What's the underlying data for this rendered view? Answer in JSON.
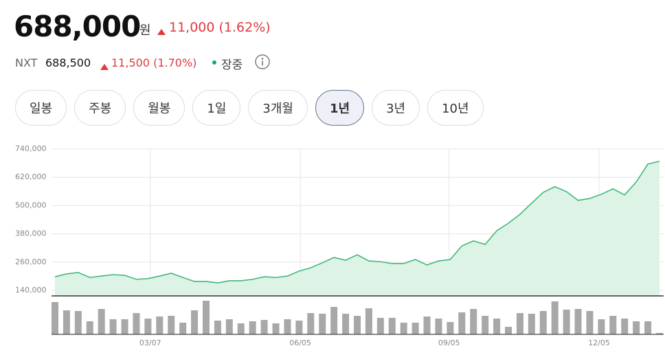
{
  "quote": {
    "price": "688,000",
    "currency": "원",
    "change": "11,000 (1.62%)"
  },
  "nxt": {
    "label": "NXT",
    "price": "688,500",
    "change": "11,500 (1.70%)",
    "status": "장중"
  },
  "periods": [
    "일봉",
    "주봉",
    "월봉",
    "1일",
    "3개월",
    "1년",
    "3년",
    "10년"
  ],
  "selected_period": 5,
  "chart_data": [
    {
      "type": "line",
      "color": "#3fb878",
      "fill": "#dcf3e6",
      "categories": [
        null,
        null,
        null,
        null,
        null,
        null,
        null,
        null,
        null,
        null,
        null,
        null,
        null,
        null,
        null,
        null,
        null,
        null,
        null,
        null,
        null,
        null,
        null,
        null,
        null,
        null,
        null,
        null,
        null,
        null,
        null,
        null,
        null,
        null,
        null,
        null,
        null,
        null,
        null,
        null,
        null,
        null,
        null,
        null,
        null,
        null,
        null,
        null,
        null,
        null,
        null,
        null,
        null
      ],
      "values": [
        198000,
        210000,
        216000,
        195000,
        201000,
        207000,
        204000,
        187000,
        190000,
        201000,
        213000,
        195000,
        178000,
        178000,
        172000,
        181000,
        181000,
        187000,
        198000,
        195000,
        201000,
        222000,
        236000,
        257000,
        280000,
        268000,
        291000,
        265000,
        262000,
        254000,
        254000,
        271000,
        248000,
        265000,
        271000,
        329000,
        350000,
        335000,
        393000,
        425000,
        463000,
        510000,
        556000,
        580000,
        559000,
        522000,
        530000,
        548000,
        571000,
        545000,
        600000,
        676000,
        688000
      ],
      "ylim": [
        140000,
        740000
      ],
      "yticks": [
        {
          "value": 140000,
          "label": "140,000"
        },
        {
          "value": 260000,
          "label": "260,000"
        },
        {
          "value": 380000,
          "label": "380,000"
        },
        {
          "value": 500000,
          "label": "500,000"
        },
        {
          "value": 620000,
          "label": "620,000"
        },
        {
          "value": 740000,
          "label": "740,000"
        }
      ],
      "xticks": [
        {
          "value": 8.2,
          "label": "03/07"
        },
        {
          "value": 21.1,
          "label": "06/05"
        },
        {
          "value": 33.9,
          "label": "09/05"
        },
        {
          "value": 46.8,
          "label": "12/05"
        }
      ],
      "grid": true
    },
    {
      "type": "bar",
      "color": "#a8a8a8",
      "categories": [
        null,
        null,
        null,
        null,
        null,
        null,
        null,
        null,
        null,
        null,
        null,
        null,
        null,
        null,
        null,
        null,
        null,
        null,
        null,
        null,
        null,
        null,
        null,
        null,
        null,
        null,
        null,
        null,
        null,
        null,
        null,
        null,
        null,
        null,
        null,
        null,
        null,
        null,
        null,
        null,
        null,
        null,
        null,
        null,
        null,
        null,
        null,
        null,
        null,
        null,
        null,
        null,
        null
      ],
      "values": [
        47,
        35,
        34,
        19,
        37,
        22,
        22,
        31,
        23,
        26,
        27,
        17,
        35,
        49,
        20,
        22,
        16,
        19,
        21,
        16,
        22,
        20,
        31,
        30,
        40,
        30,
        27,
        38,
        24,
        24,
        17,
        17,
        26,
        23,
        18,
        32,
        37,
        27,
        23,
        11,
        31,
        30,
        34,
        48,
        36,
        37,
        34,
        22,
        27,
        23,
        19,
        19,
        2
      ]
    }
  ]
}
